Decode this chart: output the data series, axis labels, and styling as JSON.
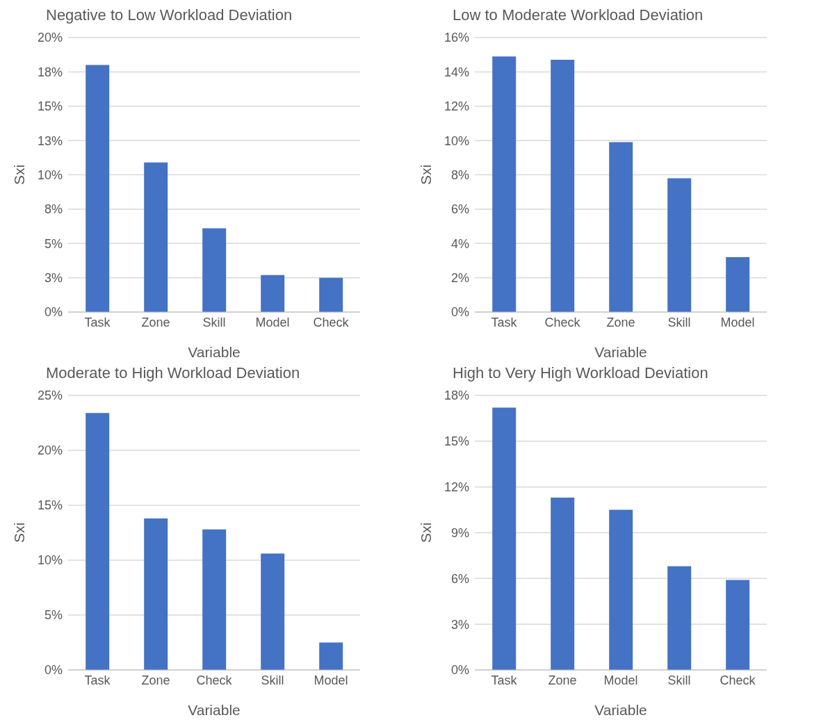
{
  "chart_data": [
    {
      "type": "bar",
      "title": "Negative to Low Workload Deviation",
      "xlabel": "Variable",
      "ylabel": "Sxi",
      "categories": [
        "Task",
        "Zone",
        "Skill",
        "Model",
        "Check"
      ],
      "values": [
        18.0,
        10.9,
        6.1,
        2.7,
        2.5
      ],
      "color": "#4472c4",
      "ylim": [
        0,
        20
      ],
      "yticks": [
        {
          "value": 0,
          "label": "0%"
        },
        {
          "value": 2.5,
          "label": "3%"
        },
        {
          "value": 5,
          "label": "5%"
        },
        {
          "value": 7.5,
          "label": "8%"
        },
        {
          "value": 10,
          "label": "10%"
        },
        {
          "value": 12.5,
          "label": "13%"
        },
        {
          "value": 15,
          "label": "15%"
        },
        {
          "value": 17.5,
          "label": "18%"
        },
        {
          "value": 20,
          "label": "20%"
        }
      ],
      "grid": "y"
    },
    {
      "type": "bar",
      "title": "Low to Moderate Workload Deviation",
      "xlabel": "Variable",
      "ylabel": "Sxi",
      "categories": [
        "Task",
        "Check",
        "Zone",
        "Skill",
        "Model"
      ],
      "values": [
        14.9,
        14.7,
        9.9,
        7.8,
        3.2
      ],
      "color": "#4472c4",
      "ylim": [
        0,
        16
      ],
      "yticks": [
        {
          "value": 0,
          "label": "0%"
        },
        {
          "value": 2,
          "label": "2%"
        },
        {
          "value": 4,
          "label": "4%"
        },
        {
          "value": 6,
          "label": "6%"
        },
        {
          "value": 8,
          "label": "8%"
        },
        {
          "value": 10,
          "label": "10%"
        },
        {
          "value": 12,
          "label": "12%"
        },
        {
          "value": 14,
          "label": "14%"
        },
        {
          "value": 16,
          "label": "16%"
        }
      ],
      "grid": "y"
    },
    {
      "type": "bar",
      "title": "Moderate to High Workload Deviation",
      "xlabel": "Variable",
      "ylabel": "Sxi",
      "categories": [
        "Task",
        "Zone",
        "Check",
        "Skill",
        "Model"
      ],
      "values": [
        23.4,
        13.8,
        12.8,
        10.6,
        2.5
      ],
      "color": "#4472c4",
      "ylim": [
        0,
        25
      ],
      "yticks": [
        {
          "value": 0,
          "label": "0%"
        },
        {
          "value": 5,
          "label": "5%"
        },
        {
          "value": 10,
          "label": "10%"
        },
        {
          "value": 15,
          "label": "15%"
        },
        {
          "value": 20,
          "label": "20%"
        },
        {
          "value": 25,
          "label": "25%"
        }
      ],
      "grid": "y"
    },
    {
      "type": "bar",
      "title": "High to Very High Workload Deviation",
      "xlabel": "Variable",
      "ylabel": "Sxi",
      "categories": [
        "Task",
        "Zone",
        "Model",
        "Skill",
        "Check"
      ],
      "values": [
        17.2,
        11.3,
        10.5,
        6.8,
        5.9
      ],
      "color": "#4472c4",
      "ylim": [
        0,
        18
      ],
      "yticks": [
        {
          "value": 0,
          "label": "0%"
        },
        {
          "value": 3,
          "label": "3%"
        },
        {
          "value": 6,
          "label": "6%"
        },
        {
          "value": 9,
          "label": "9%"
        },
        {
          "value": 12,
          "label": "12%"
        },
        {
          "value": 15,
          "label": "15%"
        },
        {
          "value": 18,
          "label": "18%"
        }
      ],
      "grid": "y"
    }
  ]
}
